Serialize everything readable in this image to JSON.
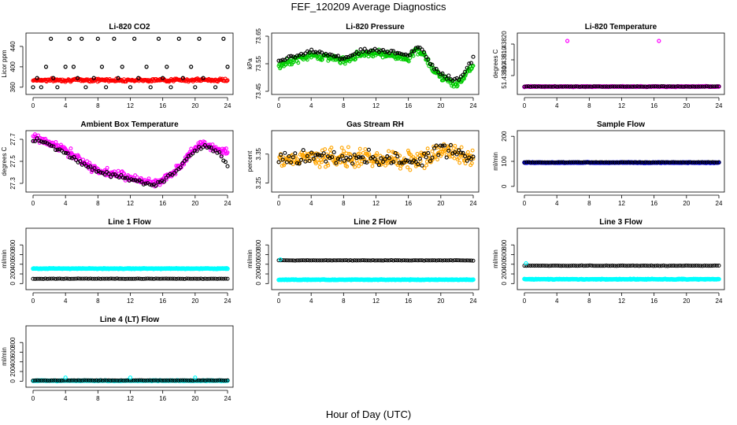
{
  "figure": {
    "title": "FEF_120209  Average Diagnostics",
    "xlabel": "Hour of Day (UTC)"
  },
  "colors": {
    "red": "#ff0000",
    "green": "#00cc00",
    "magenta": "#ff00ff",
    "orange": "#ffa500",
    "blue": "#0000ff",
    "cyan": "#00ffff",
    "black": "#000000"
  },
  "chart_data": [
    {
      "type": "scatter",
      "title": "Li-820 CO2",
      "ylabel": "Licor ppm",
      "xlim": [
        0,
        24
      ],
      "xticks": [
        "0",
        "4",
        "8",
        "12",
        "16",
        "20",
        "24"
      ],
      "ylim": [
        352,
        460
      ],
      "yticks": [
        "360",
        "400",
        "440"
      ],
      "series": [
        {
          "color": "red",
          "style": "dense-band",
          "center": 374,
          "spread": 3,
          "trend": 0
        },
        {
          "color": "black",
          "style": "open-circle",
          "x": [
            0.0,
            0.5,
            1.0,
            1.6,
            2.2,
            2.5,
            3.0,
            4.0,
            4.5,
            5.0,
            5.5,
            6.0,
            6.5,
            7.5,
            8.0,
            8.5,
            9.0,
            10.0,
            10.5,
            11.0,
            12.0,
            12.5,
            13.0,
            14.0,
            14.5,
            15.5,
            16.0,
            16.5,
            17.0,
            18.0,
            18.5,
            19.5,
            20.0,
            20.5,
            21.0,
            22.5,
            23.5,
            24.0
          ],
          "y": [
            360,
            378,
            360,
            400,
            455,
            378,
            360,
            400,
            455,
            400,
            378,
            455,
            360,
            378,
            455,
            400,
            360,
            455,
            378,
            400,
            360,
            455,
            378,
            400,
            360,
            455,
            378,
            400,
            360,
            455,
            378,
            400,
            360,
            455,
            378,
            360,
            455,
            400
          ]
        }
      ]
    },
    {
      "type": "scatter",
      "title": "Li-820 Pressure",
      "ylabel": "kPa",
      "xlim": [
        0,
        24
      ],
      "xticks": [
        "0",
        "4",
        "8",
        "12",
        "16",
        "20",
        "24"
      ],
      "ylim": [
        73.45,
        73.65
      ],
      "yticks": [
        "73.45",
        "73.55",
        "73.65"
      ],
      "series": [
        {
          "color": "green",
          "style": "band-curve",
          "spread": 0.012,
          "curve_x": [
            0,
            2,
            4,
            6,
            8,
            10,
            12,
            14,
            16,
            17,
            18,
            19,
            20,
            21,
            22,
            23,
            24
          ],
          "curve_y": [
            73.54,
            73.565,
            73.58,
            73.575,
            73.56,
            73.585,
            73.59,
            73.58,
            73.57,
            73.6,
            73.58,
            73.53,
            73.5,
            73.49,
            73.47,
            73.51,
            73.55
          ]
        },
        {
          "color": "black",
          "style": "curve-circles",
          "spread": 0.008,
          "curve_x": [
            0,
            2,
            4,
            6,
            8,
            10,
            12,
            14,
            16,
            17,
            18,
            19,
            20,
            21,
            22,
            23,
            24
          ],
          "curve_y": [
            73.56,
            73.575,
            73.6,
            73.585,
            73.57,
            73.595,
            73.6,
            73.59,
            73.58,
            73.61,
            73.59,
            73.54,
            73.51,
            73.5,
            73.49,
            73.52,
            73.57
          ]
        }
      ]
    },
    {
      "type": "scatter",
      "title": "Li-820 Temperature",
      "ylabel": "degrees C",
      "xlim": [
        0,
        24
      ],
      "xticks": [
        "0",
        "4",
        "8",
        "12",
        "16",
        "20",
        "24"
      ],
      "ylim": [
        51.4379,
        51.43825
      ],
      "yticks": [
        "51.43800",
        "51.43810",
        "51.43820"
      ],
      "series": [
        {
          "color": "magenta",
          "style": "flat-line",
          "y": 51.43793
        },
        {
          "color": "black",
          "style": "flat-circles",
          "y": 51.43793
        },
        {
          "color": "magenta",
          "style": "open-circle",
          "x": [
            5.3,
            16.6
          ],
          "y": [
            51.43822,
            51.43822
          ]
        }
      ]
    },
    {
      "type": "scatter",
      "title": "Ambient Box Temperature",
      "ylabel": "degrees C",
      "xlim": [
        0,
        24
      ],
      "xticks": [
        "0",
        "4",
        "8",
        "12",
        "16",
        "20",
        "24"
      ],
      "ylim": [
        27.25,
        27.75
      ],
      "yticks": [
        "27.3",
        "27.5",
        "27.7"
      ],
      "series": [
        {
          "color": "magenta",
          "style": "band-curve",
          "spread": 0.035,
          "curve_x": [
            0,
            1,
            2,
            3,
            4,
            5,
            6,
            7,
            8,
            9,
            10,
            11,
            12,
            13,
            14,
            15,
            16,
            17,
            18,
            19,
            20,
            21,
            22,
            23,
            24
          ],
          "curve_y": [
            27.72,
            27.7,
            27.67,
            27.64,
            27.6,
            27.55,
            27.5,
            27.45,
            27.42,
            27.4,
            27.38,
            27.37,
            27.35,
            27.33,
            27.31,
            27.3,
            27.33,
            27.38,
            27.45,
            27.55,
            27.62,
            27.66,
            27.63,
            27.6,
            27.58
          ]
        },
        {
          "color": "black",
          "style": "curve-circles",
          "spread": 0.02,
          "curve_x": [
            0,
            1,
            2,
            3,
            4,
            5,
            6,
            7,
            8,
            9,
            10,
            11,
            12,
            13,
            14,
            15,
            16,
            17,
            18,
            19,
            20,
            21,
            22,
            23,
            24
          ],
          "curve_y": [
            27.7,
            27.68,
            27.65,
            27.62,
            27.58,
            27.53,
            27.48,
            27.44,
            27.41,
            27.39,
            27.37,
            27.36,
            27.34,
            27.32,
            27.3,
            27.29,
            27.32,
            27.37,
            27.44,
            27.53,
            27.6,
            27.64,
            27.62,
            27.58,
            27.45
          ]
        }
      ]
    },
    {
      "type": "scatter",
      "title": "Gas Stream RH",
      "ylabel": "percent",
      "xlim": [
        0,
        24
      ],
      "xticks": [
        "0",
        "4",
        "8",
        "12",
        "16",
        "20",
        "24"
      ],
      "ylim": [
        3.23,
        3.42
      ],
      "yticks": [
        "3.25",
        "3.35"
      ],
      "series": [
        {
          "color": "orange",
          "style": "band-curve",
          "spread": 0.03,
          "curve_x": [
            0,
            4,
            8,
            12,
            16,
            18,
            20,
            22,
            24
          ],
          "curve_y": [
            3.33,
            3.34,
            3.335,
            3.335,
            3.33,
            3.335,
            3.36,
            3.355,
            3.34
          ]
        },
        {
          "color": "black",
          "style": "curve-circles",
          "spread": 0.025,
          "curve_x": [
            0,
            4,
            8,
            12,
            16,
            18,
            20,
            22,
            24
          ],
          "curve_y": [
            3.33,
            3.345,
            3.335,
            3.335,
            3.325,
            3.34,
            3.36,
            3.35,
            3.34
          ]
        }
      ]
    },
    {
      "type": "scatter",
      "title": "Sample Flow",
      "ylabel": "ml/min",
      "xlim": [
        0,
        24
      ],
      "xticks": [
        "0",
        "4",
        "8",
        "12",
        "16",
        "20",
        "24"
      ],
      "ylim": [
        -10,
        210
      ],
      "yticks": [
        "0",
        "100",
        "200"
      ],
      "series": [
        {
          "color": "blue",
          "style": "flat-line",
          "y": 95
        },
        {
          "color": "black",
          "style": "flat-circles",
          "y": 96
        }
      ]
    },
    {
      "type": "scatter",
      "title": "Line 1 Flow",
      "ylabel": "ml/min",
      "xlim": [
        0,
        24
      ],
      "xticks": [
        "0",
        "4",
        "8",
        "12",
        "16",
        "20",
        "24"
      ],
      "ylim": [
        -60,
        1080
      ],
      "yticks": [
        "0",
        "200",
        "400",
        "600",
        "800"
      ],
      "series": [
        {
          "color": "cyan",
          "style": "flat-line",
          "y": 310
        },
        {
          "color": "black",
          "style": "flat-circles",
          "y": 100
        }
      ]
    },
    {
      "type": "scatter",
      "title": "Line 2 Flow",
      "ylabel": "ml/min",
      "xlim": [
        0,
        24
      ],
      "xticks": [
        "0",
        "4",
        "8",
        "12",
        "16",
        "20",
        "24"
      ],
      "ylim": [
        -60,
        1080
      ],
      "yticks": [
        "0",
        "200",
        "400",
        "600",
        "800"
      ],
      "series": [
        {
          "color": "cyan",
          "style": "flat-line",
          "y": 80
        },
        {
          "color": "black",
          "style": "flat-circles",
          "y": 480
        },
        {
          "color": "cyan",
          "style": "open-circle",
          "x": [
            0.2
          ],
          "y": [
            500
          ]
        }
      ]
    },
    {
      "type": "scatter",
      "title": "Line 3 Flow",
      "ylabel": "ml/min",
      "xlim": [
        0,
        24
      ],
      "xticks": [
        "0",
        "4",
        "8",
        "12",
        "16",
        "20",
        "24"
      ],
      "ylim": [
        -60,
        1080
      ],
      "yticks": [
        "0",
        "200",
        "400",
        "600",
        "800"
      ],
      "series": [
        {
          "color": "cyan",
          "style": "flat-line",
          "y": 90
        },
        {
          "color": "black",
          "style": "flat-circles",
          "y": 370
        },
        {
          "color": "cyan",
          "style": "open-circle",
          "x": [
            0.2
          ],
          "y": [
            420
          ]
        }
      ]
    },
    {
      "type": "scatter",
      "title": "Line 4 (LT) Flow",
      "ylabel": "ml/min",
      "xlim": [
        0,
        24
      ],
      "xticks": [
        "0",
        "4",
        "8",
        "12",
        "16",
        "20",
        "24"
      ],
      "ylim": [
        -60,
        1080
      ],
      "yticks": [
        "0",
        "200",
        "400",
        "600",
        "800"
      ],
      "series": [
        {
          "color": "cyan",
          "style": "flat-line",
          "y": 10
        },
        {
          "color": "black",
          "style": "flat-circles",
          "y": 15
        },
        {
          "color": "cyan",
          "style": "open-circle",
          "x": [
            4,
            12,
            20
          ],
          "y": [
            75,
            75,
            75
          ]
        }
      ]
    }
  ]
}
